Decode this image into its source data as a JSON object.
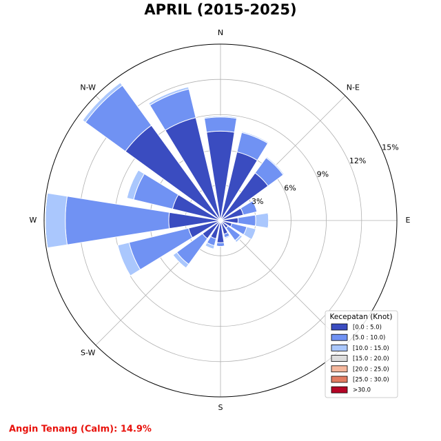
{
  "chart_data": {
    "type": "windrose",
    "title": "APRIL (2015-2025)",
    "categories": [
      null,
      null,
      null,
      null,
      null,
      null,
      null,
      null,
      null,
      null,
      null,
      null,
      null,
      null,
      null,
      null
    ],
    "angle_labels": [
      "N",
      "N-E",
      "E",
      null,
      "S",
      "S-W",
      "W",
      "N-W"
    ],
    "rlim": [
      0,
      15
    ],
    "rticks": [
      {
        "value": 3,
        "label": "3%"
      },
      {
        "value": 6,
        "label": "6%"
      },
      {
        "value": 9,
        "label": "9%"
      },
      {
        "value": 12,
        "label": "12%"
      },
      {
        "value": 15,
        "label": "15%"
      }
    ],
    "grid": true,
    "legend_title": "Kecepatan (Knot)",
    "legend_position": "lower right",
    "series": [
      {
        "name": "[0.0 : 5.0)",
        "color": "#3a4cc0",
        "values": [
          7.6,
          6.0,
          5.0,
          2.0,
          1.5,
          1.0,
          0.8,
          1.2,
          1.9,
          1.6,
          1.9,
          2.8,
          4.4,
          4.2,
          10.0,
          9.0
        ]
      },
      {
        "name": "[5.0 : 10.0)",
        "color": "#7092f3",
        "values": [
          1.2,
          1.7,
          1.6,
          1.2,
          1.5,
          1.3,
          1.3,
          0.3,
          0.3,
          0.6,
          2.7,
          5.2,
          8.8,
          3.4,
          4.2,
          2.5
        ]
      },
      {
        "name": "[10.0 : 15.0)",
        "color": "#aac7fd",
        "values": [
          0.1,
          0.1,
          0.1,
          0,
          1.1,
          0.8,
          0.2,
          0.1,
          0,
          0.3,
          0.4,
          1.0,
          1.7,
          0.6,
          0.3,
          0.2
        ]
      },
      {
        "name": "[15.0 : 20.0)",
        "color": "#dddddd",
        "values": [
          0,
          0,
          0,
          0,
          0,
          0,
          0,
          0,
          0,
          0,
          0,
          0,
          0,
          0,
          0,
          0
        ]
      },
      {
        "name": "[20.0 : 25.0)",
        "color": "#f5b89d",
        "values": [
          0,
          0,
          0,
          0,
          0,
          0,
          0,
          0,
          0,
          0,
          0,
          0,
          0,
          0,
          0,
          0
        ]
      },
      {
        "name": "[25.0 : 30.0)",
        "color": "#e27c62",
        "values": [
          0,
          0,
          0,
          0,
          0,
          0,
          0,
          0,
          0,
          0,
          0,
          0,
          0,
          0,
          0,
          0
        ]
      },
      {
        "name": ">30.0",
        "color": "#b40426",
        "values": [
          0,
          0,
          0,
          0,
          0,
          0,
          0,
          0,
          0,
          0,
          0,
          0,
          0,
          0,
          0,
          0
        ]
      }
    ],
    "annotation": "Angin Tenang (Calm): 14.9%"
  }
}
